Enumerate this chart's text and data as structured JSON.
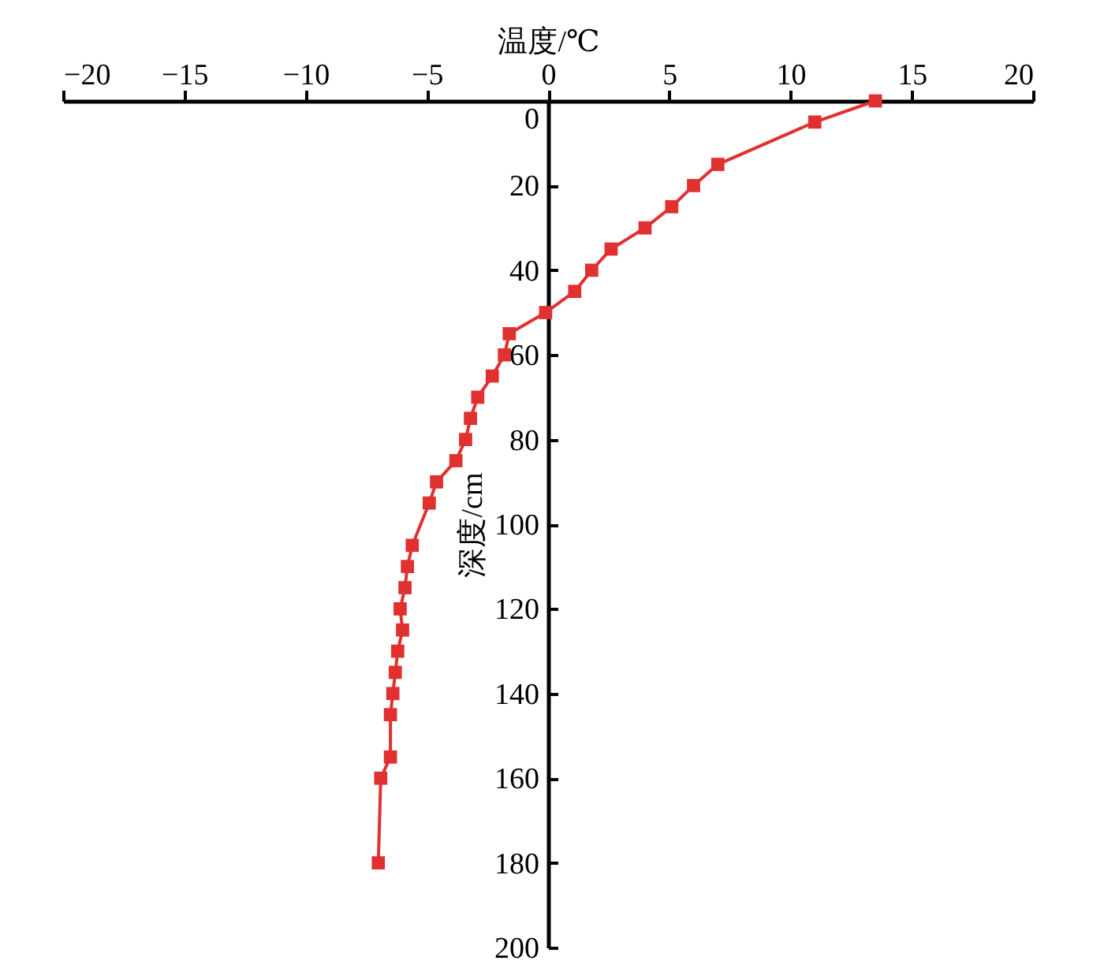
{
  "chart_data": {
    "type": "line",
    "xlabel": "温度/℃",
    "ylabel": "深度/cm",
    "xlim": [
      -20,
      20
    ],
    "xticks": [
      -20,
      -15,
      -10,
      -5,
      0,
      5,
      10,
      15,
      20
    ],
    "ylim": [
      200,
      0
    ],
    "yticks": [
      0,
      20,
      40,
      60,
      80,
      100,
      120,
      140,
      160,
      180,
      200
    ],
    "grid": false,
    "marker": "square",
    "line_style": "solid",
    "series": [
      {
        "color": "#e03030",
        "x": [
          13.5,
          11.0,
          7.0,
          6.0,
          5.1,
          4.0,
          2.6,
          1.8,
          1.1,
          -0.1,
          -1.6,
          -1.8,
          -2.3,
          -2.9,
          -3.2,
          -3.4,
          -3.8,
          -4.6,
          -4.9,
          -5.6,
          -5.8,
          -5.9,
          -6.1,
          -6.0,
          -6.2,
          -6.3,
          -6.4,
          -6.5,
          -6.5,
          -6.9,
          -7.0
        ],
        "values": [
          0,
          5,
          15,
          20,
          25,
          30,
          35,
          40,
          45,
          50,
          55,
          60,
          65,
          70,
          75,
          80,
          85,
          90,
          95,
          105,
          110,
          115,
          120,
          125,
          130,
          135,
          140,
          145,
          155,
          160,
          180
        ]
      }
    ]
  }
}
